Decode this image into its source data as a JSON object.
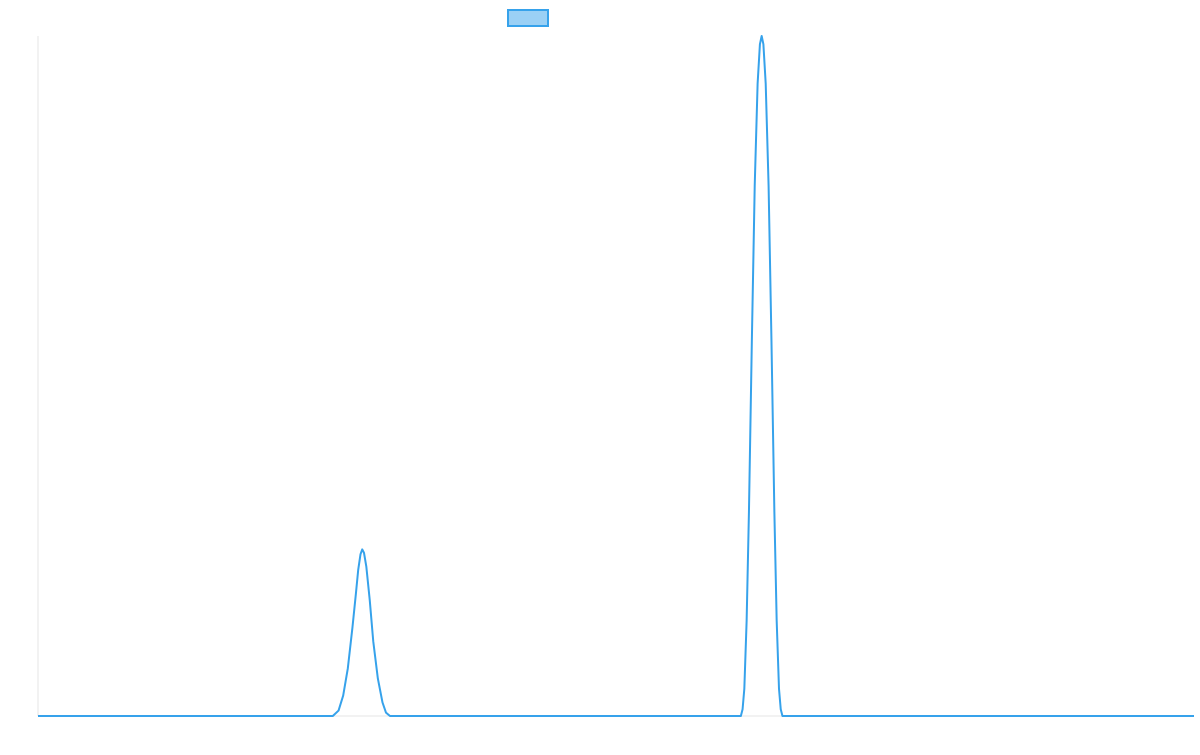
{
  "chart_data": {
    "type": "line",
    "title": "",
    "xlabel": "",
    "ylabel": "",
    "x_range": [
      0,
      100
    ],
    "y_range": [
      0,
      100
    ],
    "grid": false,
    "legend_position": "top",
    "series": [
      {
        "label": "",
        "color": "#36a2eb",
        "legend_fill": "#9ad0f5",
        "points": [
          [
            0,
            0
          ],
          [
            25.5,
            0
          ],
          [
            26.0,
            0.8
          ],
          [
            26.4,
            3.0
          ],
          [
            26.8,
            7.0
          ],
          [
            27.2,
            13.0
          ],
          [
            27.5,
            18.0
          ],
          [
            27.7,
            21.5
          ],
          [
            27.9,
            23.8
          ],
          [
            28.05,
            24.5
          ],
          [
            28.2,
            24.0
          ],
          [
            28.4,
            22.0
          ],
          [
            28.7,
            17.0
          ],
          [
            29.0,
            11.0
          ],
          [
            29.4,
            5.5
          ],
          [
            29.8,
            2.0
          ],
          [
            30.1,
            0.5
          ],
          [
            30.45,
            0
          ],
          [
            60.8,
            0
          ],
          [
            60.95,
            1.0
          ],
          [
            61.1,
            4.0
          ],
          [
            61.3,
            14.0
          ],
          [
            61.5,
            30.0
          ],
          [
            61.75,
            55.0
          ],
          [
            62.0,
            78.0
          ],
          [
            62.25,
            93.0
          ],
          [
            62.45,
            98.8
          ],
          [
            62.6,
            100.0
          ],
          [
            62.75,
            98.8
          ],
          [
            62.95,
            93.0
          ],
          [
            63.2,
            78.0
          ],
          [
            63.45,
            55.0
          ],
          [
            63.7,
            30.0
          ],
          [
            63.9,
            14.0
          ],
          [
            64.1,
            4.0
          ],
          [
            64.25,
            1.0
          ],
          [
            64.4,
            0
          ],
          [
            100,
            0
          ]
        ]
      }
    ]
  }
}
